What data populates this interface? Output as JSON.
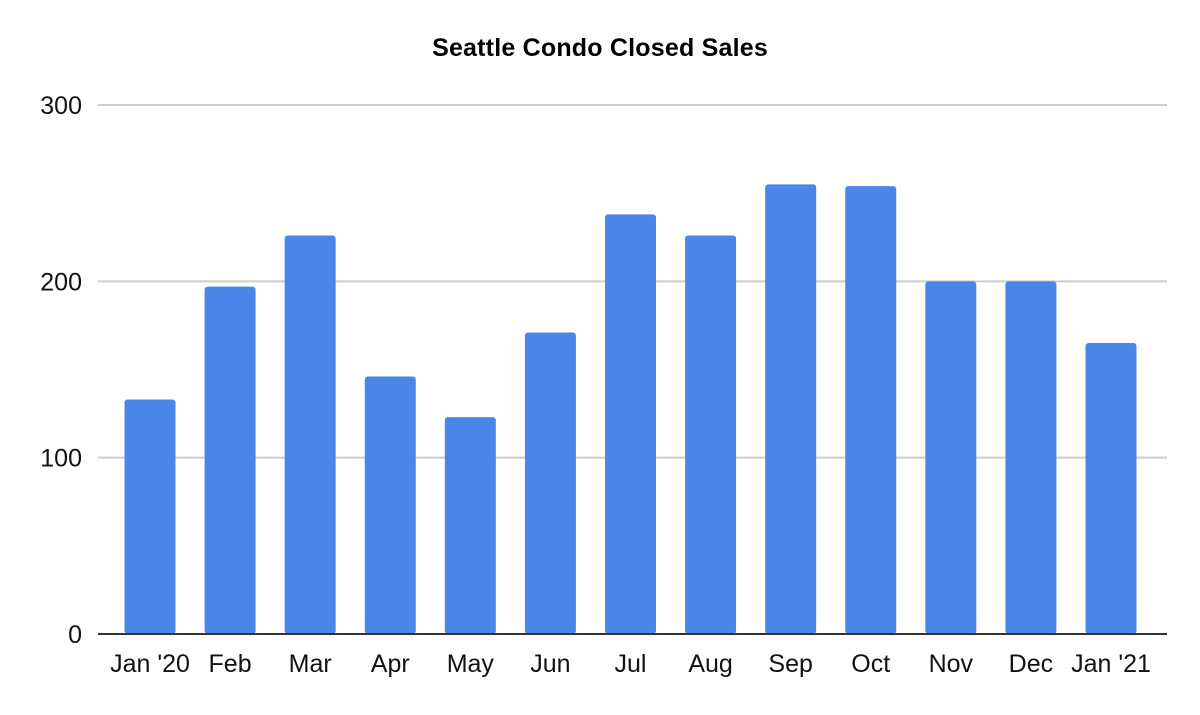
{
  "chart_data": {
    "type": "bar",
    "title": "Seattle Condo Closed Sales",
    "xlabel": "",
    "ylabel": "",
    "categories": [
      "Jan '20",
      "Feb",
      "Mar",
      "Apr",
      "May",
      "Jun",
      "Jul",
      "Aug",
      "Sep",
      "Oct",
      "Nov",
      "Dec",
      "Jan '21"
    ],
    "values": [
      133,
      197,
      226,
      146,
      123,
      171,
      238,
      226,
      255,
      254,
      200,
      200,
      165
    ],
    "ylim": [
      0,
      300
    ],
    "yticks": [
      0,
      100,
      200,
      300
    ],
    "grid": true,
    "legend": "none",
    "colors": {
      "bar": "#4A86E8",
      "gridline": "#cccccc",
      "axis": "#333333"
    }
  }
}
